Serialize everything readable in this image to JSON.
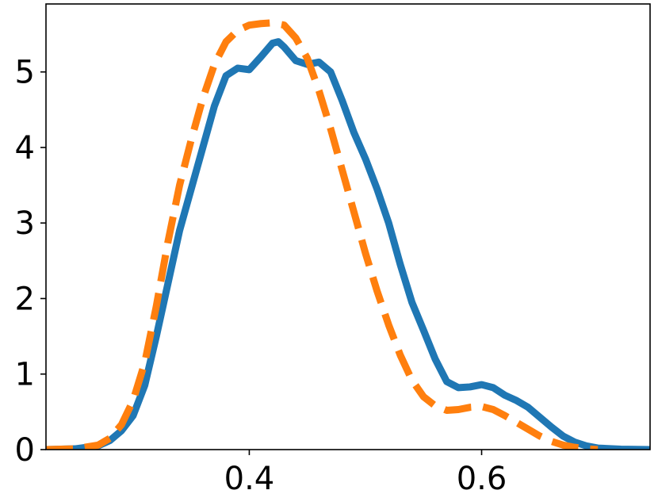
{
  "chart_data": {
    "type": "line",
    "title": "",
    "xlabel": "",
    "ylabel": "",
    "xlim": [
      0.225,
      0.745
    ],
    "ylim": [
      0,
      5.9
    ],
    "grid": false,
    "legend": "none",
    "x_ticks": [
      {
        "value": 0.4,
        "label": "0.4"
      },
      {
        "value": 0.6,
        "label": "0.6"
      }
    ],
    "y_ticks": [
      {
        "value": 0,
        "label": "0"
      },
      {
        "value": 1,
        "label": "1"
      },
      {
        "value": 2,
        "label": "2"
      },
      {
        "value": 3,
        "label": "3"
      },
      {
        "value": 4,
        "label": "4"
      },
      {
        "value": 5,
        "label": "5"
      }
    ],
    "series": [
      {
        "color": "#1f77b4",
        "style": "solid",
        "points": [
          [
            0.225,
            0.0
          ],
          [
            0.25,
            0.01
          ],
          [
            0.27,
            0.05
          ],
          [
            0.28,
            0.12
          ],
          [
            0.29,
            0.25
          ],
          [
            0.3,
            0.45
          ],
          [
            0.31,
            0.85
          ],
          [
            0.32,
            1.5
          ],
          [
            0.33,
            2.2
          ],
          [
            0.34,
            2.9
          ],
          [
            0.35,
            3.45
          ],
          [
            0.36,
            4.0
          ],
          [
            0.37,
            4.55
          ],
          [
            0.38,
            4.95
          ],
          [
            0.39,
            5.05
          ],
          [
            0.4,
            5.03
          ],
          [
            0.41,
            5.2
          ],
          [
            0.42,
            5.38
          ],
          [
            0.425,
            5.4
          ],
          [
            0.43,
            5.33
          ],
          [
            0.44,
            5.15
          ],
          [
            0.45,
            5.1
          ],
          [
            0.46,
            5.13
          ],
          [
            0.47,
            5.0
          ],
          [
            0.48,
            4.62
          ],
          [
            0.49,
            4.2
          ],
          [
            0.5,
            3.85
          ],
          [
            0.51,
            3.45
          ],
          [
            0.52,
            3.0
          ],
          [
            0.53,
            2.45
          ],
          [
            0.54,
            1.95
          ],
          [
            0.55,
            1.58
          ],
          [
            0.56,
            1.2
          ],
          [
            0.57,
            0.9
          ],
          [
            0.58,
            0.82
          ],
          [
            0.59,
            0.83
          ],
          [
            0.6,
            0.86
          ],
          [
            0.61,
            0.82
          ],
          [
            0.62,
            0.72
          ],
          [
            0.63,
            0.65
          ],
          [
            0.64,
            0.56
          ],
          [
            0.65,
            0.43
          ],
          [
            0.66,
            0.3
          ],
          [
            0.67,
            0.18
          ],
          [
            0.68,
            0.1
          ],
          [
            0.69,
            0.05
          ],
          [
            0.7,
            0.02
          ],
          [
            0.72,
            0.005
          ],
          [
            0.745,
            0.0
          ]
        ]
      },
      {
        "color": "#ff7f0e",
        "style": "dashed",
        "points": [
          [
            0.225,
            0.0
          ],
          [
            0.25,
            0.01
          ],
          [
            0.27,
            0.06
          ],
          [
            0.28,
            0.15
          ],
          [
            0.29,
            0.33
          ],
          [
            0.3,
            0.65
          ],
          [
            0.31,
            1.15
          ],
          [
            0.32,
            1.9
          ],
          [
            0.33,
            2.75
          ],
          [
            0.34,
            3.5
          ],
          [
            0.35,
            4.1
          ],
          [
            0.36,
            4.65
          ],
          [
            0.37,
            5.1
          ],
          [
            0.38,
            5.4
          ],
          [
            0.39,
            5.55
          ],
          [
            0.4,
            5.62
          ],
          [
            0.41,
            5.64
          ],
          [
            0.42,
            5.65
          ],
          [
            0.43,
            5.62
          ],
          [
            0.44,
            5.45
          ],
          [
            0.45,
            5.18
          ],
          [
            0.46,
            4.75
          ],
          [
            0.47,
            4.25
          ],
          [
            0.48,
            3.7
          ],
          [
            0.49,
            3.15
          ],
          [
            0.5,
            2.6
          ],
          [
            0.51,
            2.1
          ],
          [
            0.52,
            1.65
          ],
          [
            0.53,
            1.25
          ],
          [
            0.54,
            0.92
          ],
          [
            0.55,
            0.7
          ],
          [
            0.56,
            0.58
          ],
          [
            0.57,
            0.52
          ],
          [
            0.58,
            0.53
          ],
          [
            0.59,
            0.56
          ],
          [
            0.6,
            0.57
          ],
          [
            0.61,
            0.53
          ],
          [
            0.62,
            0.45
          ],
          [
            0.63,
            0.36
          ],
          [
            0.64,
            0.27
          ],
          [
            0.65,
            0.18
          ],
          [
            0.66,
            0.11
          ],
          [
            0.67,
            0.06
          ],
          [
            0.68,
            0.03
          ],
          [
            0.69,
            0.01
          ],
          [
            0.7,
            0.0
          ]
        ]
      }
    ]
  }
}
